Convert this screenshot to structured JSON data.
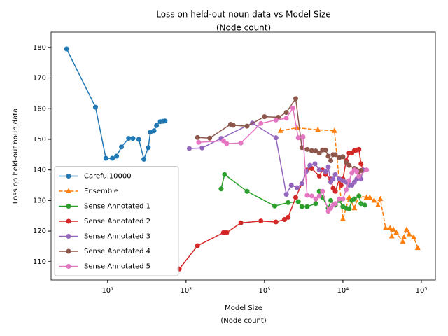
{
  "chart_data": {
    "type": "line",
    "title": "Loss on held-out noun data vs Model Size",
    "subtitle": "(Node count)",
    "xlabel": "Model Size",
    "xlabel_sub": "(Node count)",
    "ylabel": "Loss on held-out noun data",
    "xscale": "log",
    "xlim": [
      1.9,
      151000
    ],
    "ylim": [
      104,
      185
    ],
    "xticks": [
      {
        "value": 10,
        "label": "10¹"
      },
      {
        "value": 100,
        "label": "10²"
      },
      {
        "value": 1000,
        "label": "10³"
      },
      {
        "value": 10000,
        "label": "10⁴"
      },
      {
        "value": 100000,
        "label": "10⁵"
      }
    ],
    "yticks": [
      110,
      120,
      130,
      140,
      150,
      160,
      170,
      180
    ],
    "legend": "lower left",
    "series": [
      {
        "name": "Careful10000",
        "color": "#1f77b4",
        "marker": "circle",
        "dash": false,
        "x": [
          3.0,
          7.0,
          9.5,
          11.5,
          13,
          15,
          18.5,
          21,
          25,
          29,
          33,
          35,
          39,
          42,
          47,
          51,
          54
        ],
        "values": [
          179.5,
          160.5,
          143.8,
          143.8,
          144.5,
          147.5,
          150.3,
          150.3,
          150,
          143.5,
          147.3,
          152.3,
          152.8,
          154.5,
          155.8,
          155.9,
          156
        ]
      },
      {
        "name": "Ensemble",
        "color": "#ff7f0e",
        "marker": "triangle",
        "dash": true,
        "x": [
          1600,
          2600,
          4800,
          7800,
          10000,
          12000,
          14000,
          16000,
          20000,
          22000,
          25000,
          28000,
          30000,
          35000,
          40000,
          42000,
          44000,
          48000,
          58000,
          60000,
          65000,
          70000,
          80000,
          90000
        ],
        "values": [
          152.8,
          153.8,
          153.1,
          152.8,
          124,
          131,
          127.5,
          131.5,
          131,
          131,
          130,
          128.5,
          130.5,
          121,
          121,
          118.3,
          120.5,
          119.5,
          116.5,
          118,
          120.5,
          119,
          118,
          114.5
        ]
      },
      {
        "name": "Sense Annotated 1",
        "color": "#2ca02c",
        "marker": "circle",
        "dash": false,
        "x": [
          280,
          310,
          600,
          1350,
          2000,
          2700,
          3000,
          3500,
          4500,
          5000,
          5500,
          6500,
          7000,
          8000,
          9000,
          10000,
          11000,
          12000,
          13000,
          14000,
          16000,
          17000,
          19000
        ],
        "values": [
          133.8,
          138.5,
          133,
          128.2,
          129.3,
          129.6,
          128,
          128,
          129,
          133,
          131,
          127.5,
          130,
          128.5,
          130,
          128,
          127.5,
          127.3,
          130,
          130.5,
          131.5,
          129,
          128.5
        ]
      },
      {
        "name": "Sense Annotated 2",
        "color": "#d62728",
        "marker": "circle",
        "dash": false,
        "x": [
          82,
          140,
          300,
          330,
          500,
          900,
          1400,
          1800,
          2000,
          2500,
          3000,
          3500,
          4000,
          5000,
          5500,
          6000,
          7000,
          7500,
          8000,
          9000,
          9500,
          10000,
          11000,
          12000,
          13000,
          14000,
          15000,
          16000,
          17000,
          18000
        ],
        "values": [
          107.6,
          115.2,
          119.5,
          119.5,
          122.7,
          123.3,
          123,
          123.8,
          124.5,
          131,
          135.5,
          140,
          140.5,
          138,
          140,
          138.5,
          137,
          134,
          133,
          137,
          135,
          137,
          143,
          145.5,
          145.5,
          146.3,
          146.5,
          146.7,
          142,
          140
        ]
      },
      {
        "name": "Sense Annotated 3",
        "color": "#9467bd",
        "marker": "circle",
        "dash": false,
        "x": [
          110,
          160,
          280,
          700,
          1400,
          1900,
          2200,
          2600,
          3000,
          3400,
          3800,
          4400,
          5000,
          6000,
          6500,
          7000,
          7500,
          8000,
          9000,
          10000,
          11000,
          12000,
          13000,
          14000,
          15000,
          17000,
          18000
        ],
        "values": [
          147,
          147.2,
          150.3,
          155.3,
          150.5,
          132,
          135,
          134.2,
          135.5,
          139.5,
          141.5,
          142,
          140,
          139.5,
          141,
          136,
          137,
          138.5,
          137,
          136.5,
          136,
          135,
          135,
          136,
          137,
          137,
          140
        ]
      },
      {
        "name": "Sense Annotated 4",
        "color": "#8c564b",
        "marker": "circle",
        "dash": false,
        "x": [
          140,
          200,
          370,
          400,
          600,
          1000,
          1500,
          1900,
          2500,
          3000,
          3500,
          4000,
          4500,
          5000,
          5500,
          6000,
          6500,
          7000,
          7500,
          8000,
          9000,
          10000,
          11000,
          12000,
          14000,
          15000,
          16000,
          17000
        ],
        "values": [
          150.6,
          150.4,
          154.9,
          154.6,
          154.3,
          157.4,
          157.2,
          158.8,
          163.3,
          147.3,
          146.7,
          146.3,
          146.2,
          145.5,
          146.5,
          146.5,
          144.5,
          143,
          145,
          145,
          144,
          144.3,
          142.5,
          141.5,
          140.5,
          140,
          139.5,
          139.8
        ]
      },
      {
        "name": "Sense Annotated 5",
        "color": "#e377c2",
        "marker": "circle",
        "dash": false,
        "x": [
          145,
          300,
          330,
          500,
          900,
          1400,
          1900,
          2300,
          2700,
          3100,
          3500,
          4000,
          4500,
          5000,
          5500,
          6500,
          7000,
          7500,
          8000,
          9000,
          10000,
          11000,
          12000,
          13000,
          14000,
          15000,
          16000,
          20000
        ],
        "values": [
          149,
          149.5,
          148.6,
          148.8,
          155.2,
          156.3,
          156.9,
          160.2,
          150.5,
          150.8,
          131.7,
          131.5,
          130.5,
          131.5,
          133,
          126.5,
          127.5,
          128.5,
          129,
          130.5,
          130.5,
          133.5,
          136.5,
          139,
          140,
          139.5,
          138,
          140
        ]
      }
    ]
  }
}
